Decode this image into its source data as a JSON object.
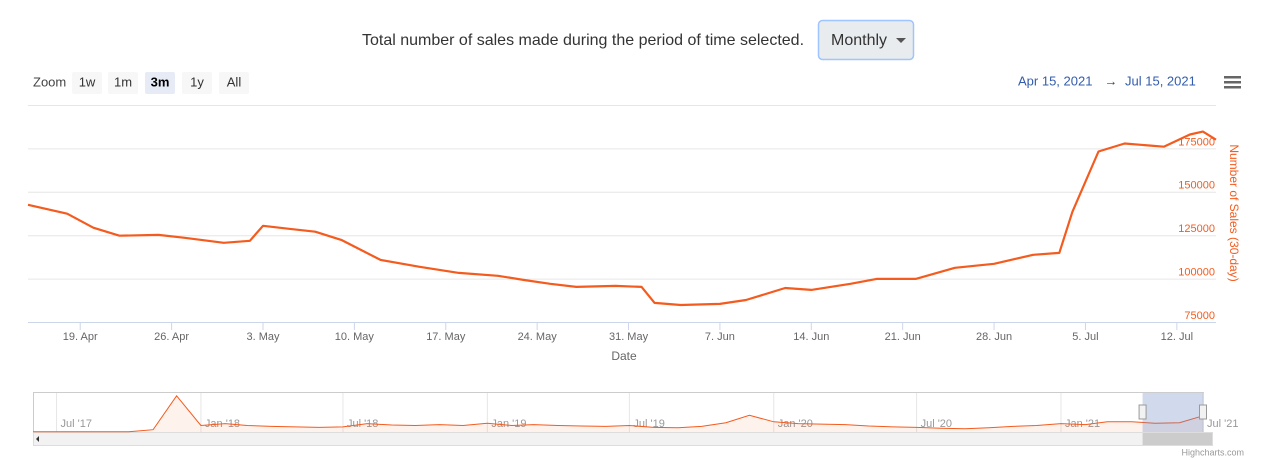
{
  "header": {
    "text": "Total number of sales made during the period of time selected.",
    "dropdown": "Monthly"
  },
  "zoom": {
    "label": "Zoom",
    "buttons": [
      "1w",
      "1m",
      "3m",
      "1y",
      "All"
    ],
    "selected_index": 2
  },
  "range": {
    "from": "Apr 15, 2021",
    "arrow": "→",
    "to": "Jul 15, 2021"
  },
  "credits": "Highcharts.com",
  "chart_data": {
    "type": "line",
    "x_label": "Date",
    "y_label": "Number of Sales (30-day)",
    "x": [
      "2021-04-15",
      "2021-04-18",
      "2021-04-20",
      "2021-04-22",
      "2021-04-25",
      "2021-04-27",
      "2021-04-30",
      "2021-05-02",
      "2021-05-03",
      "2021-05-05",
      "2021-05-07",
      "2021-05-09",
      "2021-05-12",
      "2021-05-15",
      "2021-05-18",
      "2021-05-21",
      "2021-05-23",
      "2021-05-25",
      "2021-05-27",
      "2021-05-30",
      "2021-06-01",
      "2021-06-02",
      "2021-06-04",
      "2021-06-07",
      "2021-06-09",
      "2021-06-12",
      "2021-06-14",
      "2021-06-17",
      "2021-06-19",
      "2021-06-22",
      "2021-06-25",
      "2021-06-28",
      "2021-07-01",
      "2021-07-03",
      "2021-07-04",
      "2021-07-06",
      "2021-07-08",
      "2021-07-10",
      "2021-07-11",
      "2021-07-13",
      "2021-07-14",
      "2021-07-15"
    ],
    "series": [
      {
        "color": "#f45b1e",
        "values": [
          142500,
          137400,
          129300,
          124700,
          125200,
          123500,
          120600,
          121800,
          130400,
          128700,
          127000,
          122300,
          110800,
          106800,
          103300,
          101600,
          99200,
          97000,
          95200,
          95800,
          95200,
          86000,
          84800,
          85400,
          87700,
          94600,
          93500,
          97000,
          99800,
          99800,
          106200,
          108500,
          113700,
          114800,
          138500,
          173200,
          177800,
          176600,
          176000,
          183000,
          184700,
          180000
        ]
      }
    ],
    "xlim": [
      "2021-04-15",
      "2021-07-15"
    ],
    "xticks": [
      {
        "value": "2021-04-19",
        "label": "19. Apr"
      },
      {
        "value": "2021-04-26",
        "label": "26. Apr"
      },
      {
        "value": "2021-05-03",
        "label": "3. May"
      },
      {
        "value": "2021-05-10",
        "label": "10. May"
      },
      {
        "value": "2021-05-17",
        "label": "17. May"
      },
      {
        "value": "2021-05-24",
        "label": "24. May"
      },
      {
        "value": "2021-05-31",
        "label": "31. May"
      },
      {
        "value": "2021-06-07",
        "label": "7. Jun"
      },
      {
        "value": "2021-06-14",
        "label": "14. Jun"
      },
      {
        "value": "2021-06-21",
        "label": "21. Jun"
      },
      {
        "value": "2021-06-28",
        "label": "28. Jun"
      },
      {
        "value": "2021-07-05",
        "label": "5. Jul"
      },
      {
        "value": "2021-07-12",
        "label": "12. Jul"
      }
    ],
    "ylim": [
      75000,
      200000
    ],
    "yticks": [
      75000,
      100000,
      125000,
      150000,
      175000
    ],
    "grid": true,
    "navigator": {
      "x": [
        "2017-06",
        "2017-07",
        "2017-08",
        "2017-09",
        "2017-10",
        "2017-11",
        "2017-12",
        "2018-01",
        "2018-02",
        "2018-03",
        "2018-04",
        "2018-05",
        "2018-06",
        "2018-07",
        "2018-08",
        "2018-09",
        "2018-10",
        "2018-11",
        "2018-12",
        "2019-01",
        "2019-02",
        "2019-03",
        "2019-04",
        "2019-05",
        "2019-06",
        "2019-07",
        "2019-08",
        "2019-09",
        "2019-10",
        "2019-11",
        "2019-12",
        "2020-01",
        "2020-02",
        "2020-03",
        "2020-04",
        "2020-05",
        "2020-06",
        "2020-07",
        "2020-08",
        "2020-09",
        "2020-10",
        "2020-11",
        "2020-12",
        "2021-01",
        "2021-02",
        "2021-03",
        "2021-04",
        "2021-05",
        "2021-06",
        "2021-07"
      ],
      "values": [
        2000,
        2000,
        2000,
        2000,
        3000,
        25000,
        390000,
        70000,
        90000,
        70000,
        60000,
        55000,
        50000,
        55000,
        90000,
        75000,
        70000,
        80000,
        70000,
        95000,
        70000,
        80000,
        70000,
        65000,
        60000,
        70000,
        50000,
        45000,
        60000,
        100000,
        180000,
        110000,
        90000,
        85000,
        80000,
        65000,
        55000,
        50000,
        40000,
        35000,
        45000,
        60000,
        70000,
        90000,
        80000,
        110000,
        110000,
        95000,
        100000,
        175000
      ],
      "xlim": [
        "2017-06",
        "2021-07"
      ],
      "ylim": [
        0,
        420000
      ],
      "xticks": [
        {
          "value": "2017-07",
          "label": "Jul '17"
        },
        {
          "value": "2018-01",
          "label": "Jan '18"
        },
        {
          "value": "2018-07",
          "label": "Jul '18"
        },
        {
          "value": "2019-01",
          "label": "Jan '19"
        },
        {
          "value": "2019-07",
          "label": "Jul '19"
        },
        {
          "value": "2020-01",
          "label": "Jan '20"
        },
        {
          "value": "2020-07",
          "label": "Jul '20"
        },
        {
          "value": "2021-01",
          "label": "Jan '21"
        },
        {
          "value": "2021-07",
          "label": "Jul '21"
        }
      ]
    }
  }
}
